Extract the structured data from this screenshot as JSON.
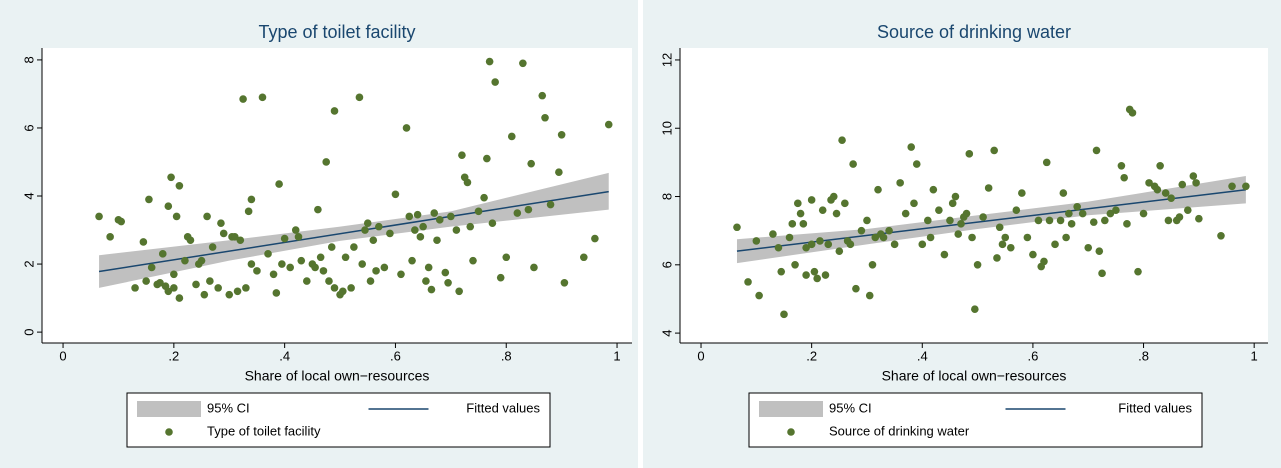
{
  "chart_data": [
    {
      "type": "scatter",
      "title": "Type of toilet facility",
      "x_label": "Share of local own−resources",
      "xlim": [
        -0.038,
        1.027
      ],
      "ylim": [
        -0.32,
        8.35
      ],
      "xticks": [
        0,
        {
          "value": 0.2,
          "label": ".2"
        },
        {
          "value": 0.4,
          "label": ".4"
        },
        {
          "value": 0.6,
          "label": ".6"
        },
        {
          "value": 0.8,
          "label": ".8"
        },
        1
      ],
      "yticks": [
        0,
        2,
        4,
        6,
        8
      ],
      "grid": false,
      "series": [
        {
          "name": "95% CI",
          "color": "#c0c0c0",
          "x": [
            0.065,
            0.3,
            0.5,
            0.7,
            0.985
          ],
          "lower": [
            1.3,
            2.1,
            2.68,
            3.1,
            3.6
          ],
          "upper": [
            2.26,
            2.7,
            3.1,
            3.55,
            4.68
          ]
        },
        {
          "name": "Fitted values",
          "color": "#1a476f",
          "x": [
            0.065,
            0.985
          ],
          "values": [
            1.78,
            4.13
          ]
        },
        {
          "name": "Type of toilet facility",
          "color": "#55752f",
          "x": [
            0.065,
            0.085,
            0.1,
            0.105,
            0.13,
            0.145,
            0.15,
            0.155,
            0.16,
            0.17,
            0.175,
            0.18,
            0.185,
            0.19,
            0.19,
            0.195,
            0.2,
            0.2,
            0.205,
            0.21,
            0.21,
            0.22,
            0.225,
            0.23,
            0.24,
            0.245,
            0.25,
            0.255,
            0.26,
            0.265,
            0.27,
            0.28,
            0.285,
            0.29,
            0.3,
            0.305,
            0.31,
            0.315,
            0.32,
            0.325,
            0.33,
            0.335,
            0.34,
            0.34,
            0.35,
            0.36,
            0.37,
            0.38,
            0.385,
            0.39,
            0.395,
            0.4,
            0.41,
            0.42,
            0.425,
            0.43,
            0.44,
            0.45,
            0.455,
            0.46,
            0.465,
            0.47,
            0.475,
            0.48,
            0.485,
            0.49,
            0.49,
            0.5,
            0.505,
            0.51,
            0.52,
            0.525,
            0.535,
            0.54,
            0.545,
            0.55,
            0.555,
            0.56,
            0.565,
            0.57,
            0.58,
            0.59,
            0.6,
            0.61,
            0.62,
            0.625,
            0.63,
            0.635,
            0.64,
            0.645,
            0.65,
            0.655,
            0.66,
            0.665,
            0.67,
            0.675,
            0.68,
            0.69,
            0.695,
            0.7,
            0.71,
            0.715,
            0.72,
            0.725,
            0.73,
            0.735,
            0.74,
            0.75,
            0.76,
            0.765,
            0.77,
            0.775,
            0.78,
            0.79,
            0.8,
            0.81,
            0.82,
            0.83,
            0.84,
            0.845,
            0.85,
            0.865,
            0.87,
            0.88,
            0.895,
            0.9,
            0.905,
            0.94,
            0.96,
            0.985
          ],
          "values": [
            3.4,
            2.8,
            3.3,
            3.25,
            1.3,
            2.65,
            1.5,
            3.9,
            1.9,
            1.4,
            1.45,
            2.3,
            1.35,
            3.7,
            1.2,
            4.55,
            1.7,
            1.3,
            3.4,
            4.3,
            1.0,
            2.1,
            2.8,
            2.7,
            1.4,
            2.0,
            2.1,
            1.1,
            3.4,
            1.5,
            2.5,
            1.3,
            3.2,
            2.9,
            1.1,
            2.8,
            2.8,
            1.2,
            2.7,
            6.85,
            1.3,
            3.55,
            3.9,
            2.0,
            1.8,
            6.9,
            2.3,
            1.7,
            1.15,
            4.35,
            2.0,
            2.75,
            1.9,
            3.0,
            2.8,
            2.1,
            1.5,
            2.0,
            1.9,
            3.6,
            2.2,
            1.8,
            5.0,
            1.5,
            2.5,
            6.5,
            1.3,
            1.1,
            1.2,
            2.2,
            1.3,
            2.5,
            6.9,
            2.0,
            3.0,
            3.2,
            1.5,
            2.7,
            1.8,
            3.1,
            1.9,
            2.9,
            4.05,
            1.7,
            6.0,
            3.4,
            2.1,
            3.0,
            3.45,
            2.8,
            3.1,
            1.5,
            1.9,
            1.25,
            3.5,
            2.7,
            3.3,
            1.75,
            1.45,
            3.4,
            3.0,
            1.2,
            5.2,
            4.55,
            4.4,
            3.1,
            2.1,
            3.55,
            3.95,
            5.1,
            7.95,
            3.2,
            7.35,
            1.6,
            2.2,
            5.75,
            3.5,
            7.9,
            3.6,
            4.95,
            1.9,
            6.95,
            6.3,
            3.75,
            4.7,
            5.8,
            1.45,
            2.2,
            2.75,
            6.1
          ]
        }
      ]
    },
    {
      "type": "scatter",
      "title": "Source of drinking water",
      "x_label": "Share of local own−resources",
      "xlim": [
        -0.038,
        1.025
      ],
      "ylim": [
        3.71,
        12.35
      ],
      "xticks": [
        0,
        {
          "value": 0.2,
          "label": ".2"
        },
        {
          "value": 0.4,
          "label": ".4"
        },
        {
          "value": 0.6,
          "label": ".6"
        },
        {
          "value": 0.8,
          "label": ".8"
        },
        1
      ],
      "yticks": [
        4,
        6,
        8,
        10,
        12
      ],
      "grid": false,
      "series": [
        {
          "name": "95% CI",
          "color": "#c0c0c0",
          "x": [
            0.065,
            0.3,
            0.5,
            0.7,
            0.985
          ],
          "lower": [
            6.05,
            6.6,
            7.05,
            7.45,
            7.8
          ],
          "upper": [
            6.75,
            7.05,
            7.45,
            7.85,
            8.6
          ]
        },
        {
          "name": "Fitted values",
          "color": "#1a476f",
          "x": [
            0.065,
            0.985
          ],
          "values": [
            6.4,
            8.2
          ]
        },
        {
          "name": "Source of drinking water",
          "color": "#55752f",
          "x": [
            0.065,
            0.085,
            0.1,
            0.105,
            0.13,
            0.14,
            0.145,
            0.15,
            0.16,
            0.165,
            0.17,
            0.175,
            0.18,
            0.185,
            0.19,
            0.19,
            0.2,
            0.2,
            0.205,
            0.21,
            0.215,
            0.22,
            0.225,
            0.23,
            0.235,
            0.24,
            0.245,
            0.25,
            0.255,
            0.26,
            0.265,
            0.27,
            0.275,
            0.28,
            0.29,
            0.3,
            0.305,
            0.31,
            0.315,
            0.32,
            0.325,
            0.33,
            0.34,
            0.35,
            0.36,
            0.37,
            0.38,
            0.385,
            0.39,
            0.4,
            0.41,
            0.415,
            0.42,
            0.43,
            0.44,
            0.45,
            0.455,
            0.46,
            0.465,
            0.47,
            0.475,
            0.48,
            0.485,
            0.49,
            0.495,
            0.5,
            0.51,
            0.52,
            0.53,
            0.535,
            0.54,
            0.545,
            0.55,
            0.56,
            0.57,
            0.58,
            0.59,
            0.6,
            0.61,
            0.615,
            0.62,
            0.625,
            0.63,
            0.64,
            0.65,
            0.655,
            0.66,
            0.665,
            0.67,
            0.68,
            0.69,
            0.7,
            0.71,
            0.715,
            0.72,
            0.725,
            0.73,
            0.74,
            0.75,
            0.76,
            0.765,
            0.77,
            0.775,
            0.78,
            0.79,
            0.8,
            0.81,
            0.82,
            0.825,
            0.83,
            0.84,
            0.845,
            0.85,
            0.86,
            0.865,
            0.87,
            0.88,
            0.89,
            0.895,
            0.9,
            0.94,
            0.96,
            0.985
          ],
          "values": [
            7.1,
            5.5,
            6.7,
            5.1,
            6.9,
            6.5,
            5.8,
            4.55,
            6.8,
            7.2,
            6.0,
            7.8,
            7.5,
            7.2,
            6.5,
            5.7,
            6.6,
            7.9,
            5.8,
            5.6,
            6.7,
            7.6,
            5.7,
            6.6,
            7.9,
            8.0,
            7.5,
            6.4,
            9.65,
            7.8,
            6.7,
            6.6,
            8.95,
            5.3,
            7.0,
            7.3,
            5.1,
            6.0,
            6.8,
            8.2,
            6.9,
            6.8,
            7.0,
            6.6,
            8.4,
            7.5,
            9.45,
            7.8,
            8.95,
            6.6,
            7.3,
            6.8,
            8.2,
            7.6,
            6.3,
            7.3,
            7.8,
            8.0,
            6.9,
            7.2,
            7.4,
            7.5,
            9.25,
            6.8,
            4.7,
            6.0,
            7.4,
            8.25,
            9.35,
            6.2,
            7.1,
            6.6,
            6.8,
            6.5,
            7.6,
            8.1,
            6.8,
            6.3,
            7.3,
            5.95,
            6.1,
            9.0,
            7.3,
            6.6,
            7.3,
            8.1,
            6.8,
            7.5,
            7.2,
            7.7,
            7.5,
            6.5,
            7.25,
            9.35,
            6.4,
            5.75,
            7.3,
            7.5,
            7.6,
            8.9,
            8.55,
            7.2,
            10.55,
            10.45,
            5.8,
            7.5,
            8.4,
            8.3,
            8.2,
            8.9,
            8.1,
            7.3,
            7.95,
            7.3,
            7.4,
            8.35,
            7.6,
            8.6,
            8.4,
            7.35,
            6.85,
            8.3,
            8.3
          ]
        }
      ]
    }
  ]
}
